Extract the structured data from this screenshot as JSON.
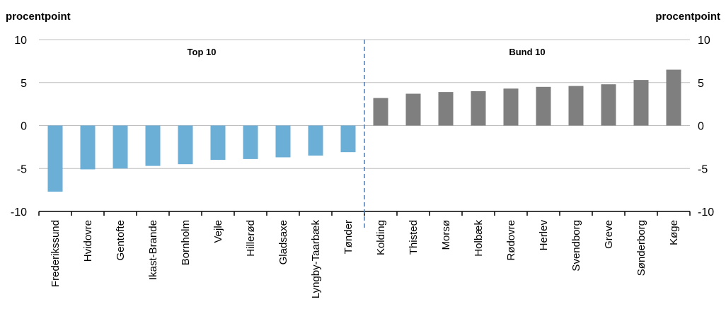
{
  "chart_data": {
    "type": "bar",
    "left_unit_label": "procentpoint",
    "right_unit_label": "procentpoint",
    "categories": [
      "Frederikssund",
      "Hvidovre",
      "Gentofte",
      "Ikast-Brande",
      "Bornholm",
      "Vejle",
      "Hillerød",
      "Gladsaxe",
      "Lyngby-Taarbæk",
      "Tønder",
      "Kolding",
      "Thisted",
      "Morsø",
      "Holbæk",
      "Rødovre",
      "Herlev",
      "Svendborg",
      "Greve",
      "Sønderborg",
      "Køge"
    ],
    "values": [
      -7.7,
      -5.1,
      -5.0,
      -4.7,
      -4.5,
      -4.0,
      -3.9,
      -3.7,
      -3.5,
      -3.1,
      3.2,
      3.7,
      3.9,
      4.0,
      4.3,
      4.5,
      4.6,
      4.8,
      5.3,
      6.5
    ],
    "ylim": [
      -10,
      10
    ],
    "yticks": [
      -10,
      -5,
      0,
      5,
      10
    ],
    "grid": true,
    "groups": [
      {
        "label": "Top 10",
        "start": 0,
        "end": 9,
        "color": "#6baed6"
      },
      {
        "label": "Bund 10",
        "start": 10,
        "end": 19,
        "color": "#7f7f7f"
      }
    ]
  }
}
